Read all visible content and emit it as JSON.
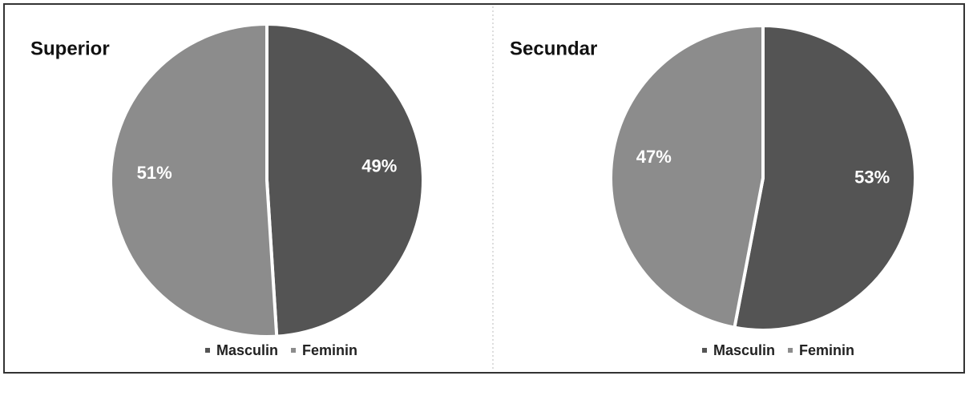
{
  "chart_data": [
    {
      "type": "pie",
      "title": "Superior",
      "categories": [
        "Masculin",
        "Feminin"
      ],
      "values": [
        49,
        51
      ],
      "value_labels": [
        "49%",
        "51%"
      ],
      "colors": [
        "#545454",
        "#8c8c8c"
      ],
      "legend": "bottom"
    },
    {
      "type": "pie",
      "title": "Secundar",
      "categories": [
        "Masculin",
        "Feminin"
      ],
      "values": [
        53,
        47
      ],
      "value_labels": [
        "53%",
        "47%"
      ],
      "colors": [
        "#545454",
        "#8c8c8c"
      ],
      "legend": "bottom"
    }
  ]
}
